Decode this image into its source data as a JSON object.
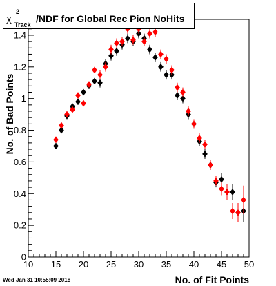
{
  "title": {
    "symbol": "χ",
    "superscript": "2",
    "subscript": "Track",
    "text": "/NDF for Global Rec Pion NoHits"
  },
  "timestamp": "Wed Jan 31 10:55:09 2018",
  "chart_data": {
    "type": "scatter",
    "title": "χ²_Track/NDF for Global Rec Pion NoHits",
    "xlabel": "No. of Fit Points",
    "ylabel": "No. of Bad Points",
    "xlim": [
      10,
      50
    ],
    "ylim": [
      0,
      1.5
    ],
    "x_ticks": [
      10,
      15,
      20,
      25,
      30,
      35,
      40,
      45,
      50
    ],
    "x_tick_labels": [
      "10",
      "15",
      "20",
      "25",
      "30",
      "35",
      "40",
      "45",
      "50"
    ],
    "y_ticks": [
      0,
      0.2,
      0.4,
      0.6,
      0.8,
      1.0,
      1.2,
      1.4
    ],
    "y_tick_labels": [
      "0",
      "0.2",
      "0.4",
      "0.6",
      "0.8",
      "1",
      "1.2",
      "1.4"
    ],
    "grid": false,
    "legend": "none",
    "marker": "diamond",
    "series": [
      {
        "color": "#000000",
        "x": [
          15,
          16,
          17,
          18,
          19,
          20,
          21,
          22,
          23,
          24,
          25,
          26,
          27,
          28,
          29,
          30,
          31,
          32,
          33,
          34,
          35,
          36,
          37,
          38,
          39,
          40,
          41,
          42,
          43,
          44,
          45,
          46,
          47,
          48,
          49
        ],
        "y": [
          0.7,
          0.8,
          0.89,
          0.95,
          0.98,
          1.04,
          1.08,
          1.11,
          1.1,
          1.22,
          1.27,
          1.3,
          1.34,
          1.38,
          1.36,
          1.41,
          1.38,
          1.31,
          1.26,
          1.2,
          1.15,
          1.15,
          1.02,
          1.0,
          0.9,
          0.84,
          0.73,
          0.65,
          0.58,
          0.47,
          0.49,
          0.41,
          0.41,
          0.28,
          0.29
        ],
        "yerr": [
          0.02,
          0.02,
          0.02,
          0.02,
          0.02,
          0.02,
          0.02,
          0.02,
          0.03,
          0.03,
          0.03,
          0.03,
          0.03,
          0.03,
          0.03,
          0.03,
          0.03,
          0.03,
          0.03,
          0.03,
          0.03,
          0.03,
          0.03,
          0.03,
          0.03,
          0.03,
          0.03,
          0.03,
          0.03,
          0.03,
          0.04,
          0.05,
          0.05,
          0.06,
          0.07
        ]
      },
      {
        "color": "#ff0000",
        "x": [
          15,
          16,
          17,
          18,
          19,
          20,
          21,
          22,
          23,
          24,
          25,
          26,
          27,
          28,
          29,
          30,
          31,
          32,
          33,
          34,
          35,
          36,
          37,
          38,
          39,
          40,
          41,
          42,
          43,
          44,
          45,
          46,
          47,
          48,
          49
        ],
        "y": [
          0.74,
          0.83,
          0.9,
          0.93,
          1.02,
          0.97,
          1.09,
          1.18,
          1.15,
          1.2,
          1.31,
          1.35,
          1.36,
          1.44,
          1.37,
          1.44,
          1.36,
          1.41,
          1.42,
          1.28,
          1.25,
          1.18,
          1.07,
          1.04,
          0.92,
          0.84,
          0.75,
          0.71,
          0.58,
          0.48,
          0.43,
          0.41,
          0.29,
          0.28,
          0.36
        ],
        "yerr": [
          0.02,
          0.02,
          0.02,
          0.02,
          0.02,
          0.02,
          0.02,
          0.02,
          0.03,
          0.03,
          0.03,
          0.03,
          0.03,
          0.03,
          0.03,
          0.03,
          0.03,
          0.03,
          0.03,
          0.03,
          0.03,
          0.03,
          0.03,
          0.03,
          0.03,
          0.03,
          0.03,
          0.03,
          0.03,
          0.03,
          0.04,
          0.05,
          0.05,
          0.06,
          0.09
        ]
      }
    ]
  }
}
